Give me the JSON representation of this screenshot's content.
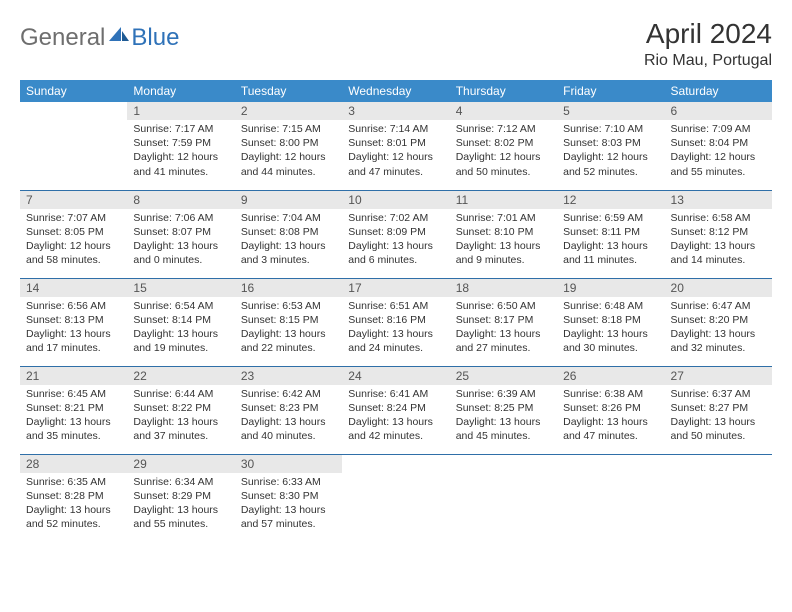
{
  "logo": {
    "text1": "General",
    "text2": "Blue"
  },
  "title": "April 2024",
  "location": "Rio Mau, Portugal",
  "colors": {
    "header_bg": "#3a8ac9",
    "header_text": "#ffffff",
    "daynum_bg": "#e8e8e8",
    "border": "#2f6fa8",
    "logo_gray": "#6e6e6e",
    "logo_blue": "#2f72b8"
  },
  "weekdays": [
    "Sunday",
    "Monday",
    "Tuesday",
    "Wednesday",
    "Thursday",
    "Friday",
    "Saturday"
  ],
  "weeks": [
    [
      null,
      {
        "n": "1",
        "sr": "Sunrise: 7:17 AM",
        "ss": "Sunset: 7:59 PM",
        "dl1": "Daylight: 12 hours",
        "dl2": "and 41 minutes."
      },
      {
        "n": "2",
        "sr": "Sunrise: 7:15 AM",
        "ss": "Sunset: 8:00 PM",
        "dl1": "Daylight: 12 hours",
        "dl2": "and 44 minutes."
      },
      {
        "n": "3",
        "sr": "Sunrise: 7:14 AM",
        "ss": "Sunset: 8:01 PM",
        "dl1": "Daylight: 12 hours",
        "dl2": "and 47 minutes."
      },
      {
        "n": "4",
        "sr": "Sunrise: 7:12 AM",
        "ss": "Sunset: 8:02 PM",
        "dl1": "Daylight: 12 hours",
        "dl2": "and 50 minutes."
      },
      {
        "n": "5",
        "sr": "Sunrise: 7:10 AM",
        "ss": "Sunset: 8:03 PM",
        "dl1": "Daylight: 12 hours",
        "dl2": "and 52 minutes."
      },
      {
        "n": "6",
        "sr": "Sunrise: 7:09 AM",
        "ss": "Sunset: 8:04 PM",
        "dl1": "Daylight: 12 hours",
        "dl2": "and 55 minutes."
      }
    ],
    [
      {
        "n": "7",
        "sr": "Sunrise: 7:07 AM",
        "ss": "Sunset: 8:05 PM",
        "dl1": "Daylight: 12 hours",
        "dl2": "and 58 minutes."
      },
      {
        "n": "8",
        "sr": "Sunrise: 7:06 AM",
        "ss": "Sunset: 8:07 PM",
        "dl1": "Daylight: 13 hours",
        "dl2": "and 0 minutes."
      },
      {
        "n": "9",
        "sr": "Sunrise: 7:04 AM",
        "ss": "Sunset: 8:08 PM",
        "dl1": "Daylight: 13 hours",
        "dl2": "and 3 minutes."
      },
      {
        "n": "10",
        "sr": "Sunrise: 7:02 AM",
        "ss": "Sunset: 8:09 PM",
        "dl1": "Daylight: 13 hours",
        "dl2": "and 6 minutes."
      },
      {
        "n": "11",
        "sr": "Sunrise: 7:01 AM",
        "ss": "Sunset: 8:10 PM",
        "dl1": "Daylight: 13 hours",
        "dl2": "and 9 minutes."
      },
      {
        "n": "12",
        "sr": "Sunrise: 6:59 AM",
        "ss": "Sunset: 8:11 PM",
        "dl1": "Daylight: 13 hours",
        "dl2": "and 11 minutes."
      },
      {
        "n": "13",
        "sr": "Sunrise: 6:58 AM",
        "ss": "Sunset: 8:12 PM",
        "dl1": "Daylight: 13 hours",
        "dl2": "and 14 minutes."
      }
    ],
    [
      {
        "n": "14",
        "sr": "Sunrise: 6:56 AM",
        "ss": "Sunset: 8:13 PM",
        "dl1": "Daylight: 13 hours",
        "dl2": "and 17 minutes."
      },
      {
        "n": "15",
        "sr": "Sunrise: 6:54 AM",
        "ss": "Sunset: 8:14 PM",
        "dl1": "Daylight: 13 hours",
        "dl2": "and 19 minutes."
      },
      {
        "n": "16",
        "sr": "Sunrise: 6:53 AM",
        "ss": "Sunset: 8:15 PM",
        "dl1": "Daylight: 13 hours",
        "dl2": "and 22 minutes."
      },
      {
        "n": "17",
        "sr": "Sunrise: 6:51 AM",
        "ss": "Sunset: 8:16 PM",
        "dl1": "Daylight: 13 hours",
        "dl2": "and 24 minutes."
      },
      {
        "n": "18",
        "sr": "Sunrise: 6:50 AM",
        "ss": "Sunset: 8:17 PM",
        "dl1": "Daylight: 13 hours",
        "dl2": "and 27 minutes."
      },
      {
        "n": "19",
        "sr": "Sunrise: 6:48 AM",
        "ss": "Sunset: 8:18 PM",
        "dl1": "Daylight: 13 hours",
        "dl2": "and 30 minutes."
      },
      {
        "n": "20",
        "sr": "Sunrise: 6:47 AM",
        "ss": "Sunset: 8:20 PM",
        "dl1": "Daylight: 13 hours",
        "dl2": "and 32 minutes."
      }
    ],
    [
      {
        "n": "21",
        "sr": "Sunrise: 6:45 AM",
        "ss": "Sunset: 8:21 PM",
        "dl1": "Daylight: 13 hours",
        "dl2": "and 35 minutes."
      },
      {
        "n": "22",
        "sr": "Sunrise: 6:44 AM",
        "ss": "Sunset: 8:22 PM",
        "dl1": "Daylight: 13 hours",
        "dl2": "and 37 minutes."
      },
      {
        "n": "23",
        "sr": "Sunrise: 6:42 AM",
        "ss": "Sunset: 8:23 PM",
        "dl1": "Daylight: 13 hours",
        "dl2": "and 40 minutes."
      },
      {
        "n": "24",
        "sr": "Sunrise: 6:41 AM",
        "ss": "Sunset: 8:24 PM",
        "dl1": "Daylight: 13 hours",
        "dl2": "and 42 minutes."
      },
      {
        "n": "25",
        "sr": "Sunrise: 6:39 AM",
        "ss": "Sunset: 8:25 PM",
        "dl1": "Daylight: 13 hours",
        "dl2": "and 45 minutes."
      },
      {
        "n": "26",
        "sr": "Sunrise: 6:38 AM",
        "ss": "Sunset: 8:26 PM",
        "dl1": "Daylight: 13 hours",
        "dl2": "and 47 minutes."
      },
      {
        "n": "27",
        "sr": "Sunrise: 6:37 AM",
        "ss": "Sunset: 8:27 PM",
        "dl1": "Daylight: 13 hours",
        "dl2": "and 50 minutes."
      }
    ],
    [
      {
        "n": "28",
        "sr": "Sunrise: 6:35 AM",
        "ss": "Sunset: 8:28 PM",
        "dl1": "Daylight: 13 hours",
        "dl2": "and 52 minutes."
      },
      {
        "n": "29",
        "sr": "Sunrise: 6:34 AM",
        "ss": "Sunset: 8:29 PM",
        "dl1": "Daylight: 13 hours",
        "dl2": "and 55 minutes."
      },
      {
        "n": "30",
        "sr": "Sunrise: 6:33 AM",
        "ss": "Sunset: 8:30 PM",
        "dl1": "Daylight: 13 hours",
        "dl2": "and 57 minutes."
      },
      null,
      null,
      null,
      null
    ]
  ]
}
